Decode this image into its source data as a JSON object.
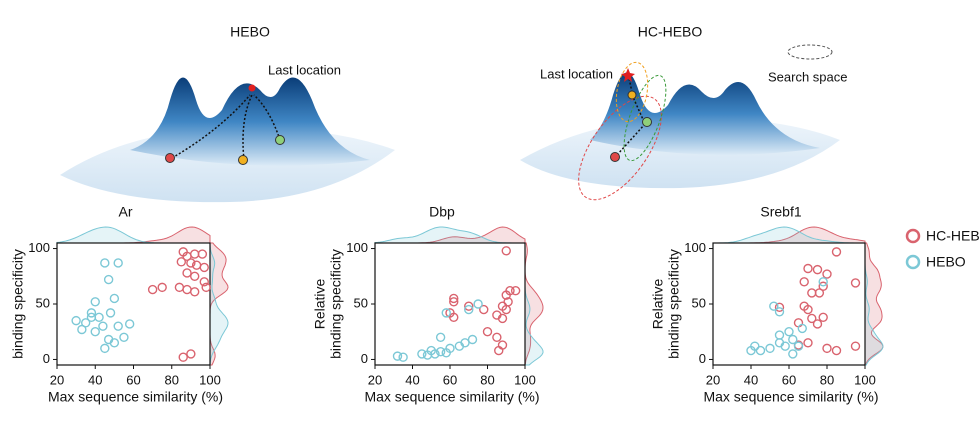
{
  "illustrations": {
    "left": {
      "title": "HEBO",
      "annotation": "Last location"
    },
    "right": {
      "title": "HC-HEBO",
      "annotation": "Last location",
      "legend": "Search space"
    }
  },
  "chart_data": [
    {
      "type": "scatter",
      "title": "Ar",
      "xlabel": "Max sequence similarity (%)",
      "ylabel": [
        "binding specificity"
      ],
      "xlim": [
        20,
        100
      ],
      "ylim": [
        -5,
        105
      ],
      "xticks": [
        20,
        40,
        60,
        80,
        100
      ],
      "yticks": [
        0,
        50,
        100
      ],
      "series": [
        {
          "name": "HC-HEBO",
          "color": "#d9636e",
          "x": [
            86,
            88,
            92,
            96,
            85,
            90,
            93,
            97,
            88,
            92,
            97,
            84,
            88,
            98,
            70,
            75,
            92,
            86,
            90
          ],
          "values": [
            97,
            93,
            95,
            95,
            88,
            87,
            85,
            83,
            78,
            75,
            70,
            65,
            63,
            65,
            63,
            65,
            61,
            2,
            5
          ]
        },
        {
          "name": "HEBO",
          "color": "#7cc8d6",
          "x": [
            45,
            52,
            47,
            40,
            50,
            38,
            42,
            48,
            35,
            44,
            52,
            58,
            30,
            33,
            40,
            47,
            55,
            50,
            45,
            38
          ],
          "values": [
            87,
            87,
            72,
            52,
            55,
            42,
            38,
            42,
            33,
            30,
            30,
            32,
            35,
            27,
            25,
            18,
            20,
            15,
            10,
            38
          ]
        }
      ]
    },
    {
      "type": "scatter",
      "title": "Dbp",
      "xlabel": "Max sequence similarity (%)",
      "ylabel": [
        "Relative",
        "binding specificity"
      ],
      "xlim": [
        20,
        100
      ],
      "ylim": [
        -5,
        105
      ],
      "xticks": [
        20,
        40,
        60,
        80,
        100
      ],
      "yticks": [
        0,
        50,
        100
      ],
      "series": [
        {
          "name": "HC-HEBO",
          "color": "#d9636e",
          "x": [
            90,
            92,
            95,
            90,
            91,
            88,
            90,
            62,
            62,
            70,
            78,
            85,
            88,
            60,
            62,
            85,
            88,
            86,
            80
          ],
          "values": [
            98,
            62,
            62,
            58,
            52,
            48,
            45,
            55,
            52,
            48,
            45,
            40,
            37,
            42,
            38,
            20,
            13,
            8,
            25
          ]
        },
        {
          "name": "HEBO",
          "color": "#7cc8d6",
          "x": [
            32,
            35,
            48,
            52,
            55,
            58,
            60,
            65,
            68,
            72,
            50,
            45,
            58,
            75,
            55,
            70
          ],
          "values": [
            3,
            2,
            4,
            5,
            7,
            6,
            10,
            12,
            15,
            18,
            8,
            5,
            42,
            50,
            20,
            45
          ]
        }
      ]
    },
    {
      "type": "scatter",
      "title": "Srebf1",
      "xlabel": "Max sequence similarity (%)",
      "ylabel": [
        "Relative",
        "binding specificity"
      ],
      "xlim": [
        20,
        100
      ],
      "ylim": [
        -5,
        105
      ],
      "xticks": [
        20,
        40,
        60,
        80,
        100
      ],
      "yticks": [
        0,
        50,
        100
      ],
      "series": [
        {
          "name": "HC-HEBO",
          "color": "#d9636e",
          "x": [
            85,
            75,
            70,
            68,
            80,
            95,
            78,
            72,
            76,
            68,
            70,
            55,
            65,
            72,
            78,
            75,
            85,
            95,
            70,
            65,
            80
          ],
          "values": [
            97,
            81,
            82,
            70,
            77,
            69,
            66,
            60,
            60,
            48,
            45,
            47,
            33,
            37,
            38,
            32,
            8,
            12,
            15,
            13,
            10
          ]
        },
        {
          "name": "HEBO",
          "color": "#7cc8d6",
          "x": [
            55,
            52,
            78,
            60,
            55,
            62,
            58,
            50,
            45,
            42,
            40,
            65,
            67,
            62,
            55
          ],
          "values": [
            43,
            48,
            70,
            25,
            22,
            18,
            12,
            10,
            8,
            12,
            8,
            12,
            28,
            5,
            15
          ]
        }
      ]
    }
  ]
}
